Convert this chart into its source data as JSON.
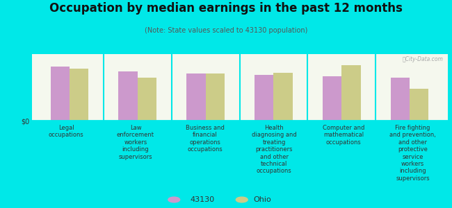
{
  "title": "Occupation by median earnings in the past 12 months",
  "subtitle": "(Note: State values scaled to 43130 population)",
  "background_color": "#00e8e8",
  "plot_bg_top": "#f5f8ee",
  "plot_bg_bottom": "#ddeedd",
  "categories": [
    "Legal\noccupations",
    "Law\nenforcement\nworkers\nincluding\nsupervisors",
    "Business and\nfinancial\noperations\noccupations",
    "Health\ndiagnosing and\ntreating\npractitioners\nand other\ntechnical\noccupations",
    "Computer and\nmathematical\noccupations",
    "Fire fighting\nand prevention,\nand other\nprotective\nservice\nworkers\nincluding\nsupervisors"
  ],
  "values_43130": [
    0.85,
    0.78,
    0.74,
    0.72,
    0.7,
    0.68
  ],
  "values_ohio": [
    0.82,
    0.68,
    0.74,
    0.75,
    0.88,
    0.5
  ],
  "color_43130": "#cc99cc",
  "color_ohio": "#cccc88",
  "ylabel": "$0",
  "legend_labels": [
    "43130",
    "Ohio"
  ],
  "watermark": "ⓂCity-Data.com",
  "bar_width": 0.28,
  "ylim": [
    0,
    1.05
  ],
  "title_fontsize": 12,
  "subtitle_fontsize": 7,
  "tick_fontsize": 6,
  "ylabel_fontsize": 7
}
